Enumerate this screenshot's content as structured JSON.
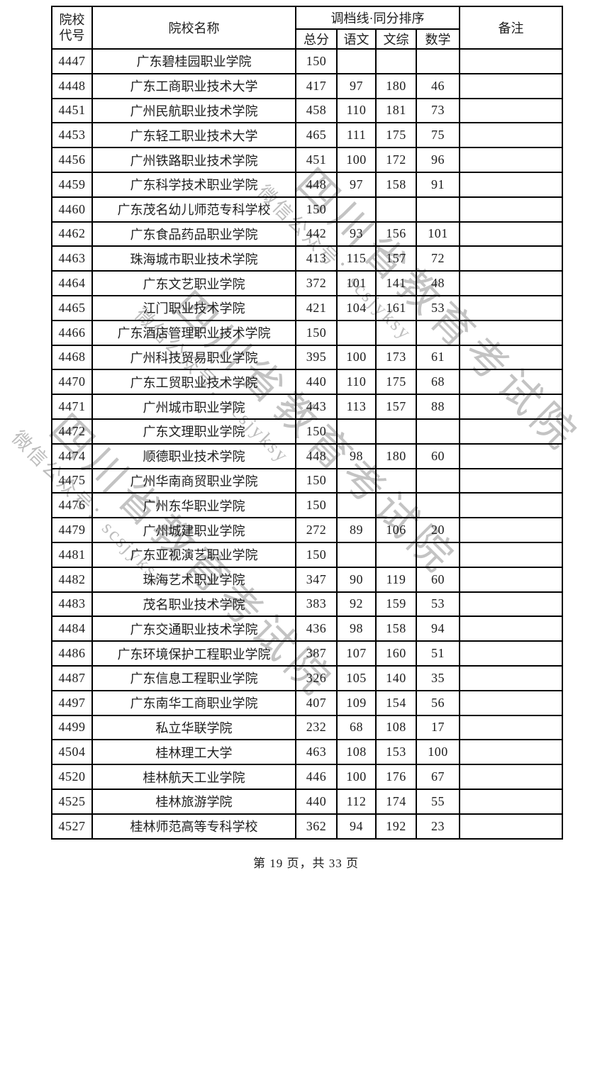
{
  "watermark": {
    "big": "四川省教育考试院",
    "small": "微信公众号：scsjyksy",
    "color_big": "#c3c3c3",
    "color_small": "#bdbdbd"
  },
  "table": {
    "header": {
      "code_line1": "院校",
      "code_line2": "代号",
      "name": "院校名称",
      "group": "调档线·同分排序",
      "sub": [
        "总分",
        "语文",
        "文综",
        "数学"
      ],
      "remark": "备注"
    },
    "rows": [
      [
        "4447",
        "广东碧桂园职业学院",
        "150",
        "",
        "",
        "",
        ""
      ],
      [
        "4448",
        "广东工商职业技术大学",
        "417",
        "97",
        "180",
        "46",
        ""
      ],
      [
        "4451",
        "广州民航职业技术学院",
        "458",
        "110",
        "181",
        "73",
        ""
      ],
      [
        "4453",
        "广东轻工职业技术大学",
        "465",
        "111",
        "175",
        "75",
        ""
      ],
      [
        "4456",
        "广州铁路职业技术学院",
        "451",
        "100",
        "172",
        "96",
        ""
      ],
      [
        "4459",
        "广东科学技术职业学院",
        "448",
        "97",
        "158",
        "91",
        ""
      ],
      [
        "4460",
        "广东茂名幼儿师范专科学校",
        "150",
        "",
        "",
        "",
        ""
      ],
      [
        "4462",
        "广东食品药品职业学院",
        "442",
        "93",
        "156",
        "101",
        ""
      ],
      [
        "4463",
        "珠海城市职业技术学院",
        "413",
        "115",
        "157",
        "72",
        ""
      ],
      [
        "4464",
        "广东文艺职业学院",
        "372",
        "101",
        "141",
        "48",
        ""
      ],
      [
        "4465",
        "江门职业技术学院",
        "421",
        "104",
        "161",
        "53",
        ""
      ],
      [
        "4466",
        "广东酒店管理职业技术学院",
        "150",
        "",
        "",
        "",
        ""
      ],
      [
        "4468",
        "广州科技贸易职业学院",
        "395",
        "100",
        "173",
        "61",
        ""
      ],
      [
        "4470",
        "广东工贸职业技术学院",
        "440",
        "110",
        "175",
        "68",
        ""
      ],
      [
        "4471",
        "广州城市职业学院",
        "443",
        "113",
        "157",
        "88",
        ""
      ],
      [
        "4472",
        "广东文理职业学院",
        "150",
        "",
        "",
        "",
        ""
      ],
      [
        "4474",
        "顺德职业技术学院",
        "448",
        "98",
        "180",
        "60",
        ""
      ],
      [
        "4475",
        "广州华南商贸职业学院",
        "150",
        "",
        "",
        "",
        ""
      ],
      [
        "4476",
        "广州东华职业学院",
        "150",
        "",
        "",
        "",
        ""
      ],
      [
        "4479",
        "广州城建职业学院",
        "272",
        "89",
        "106",
        "20",
        ""
      ],
      [
        "4481",
        "广东亚视演艺职业学院",
        "150",
        "",
        "",
        "",
        ""
      ],
      [
        "4482",
        "珠海艺术职业学院",
        "347",
        "90",
        "119",
        "60",
        ""
      ],
      [
        "4483",
        "茂名职业技术学院",
        "383",
        "92",
        "159",
        "53",
        ""
      ],
      [
        "4484",
        "广东交通职业技术学院",
        "436",
        "98",
        "158",
        "94",
        ""
      ],
      [
        "4486",
        "广东环境保护工程职业学院",
        "387",
        "107",
        "160",
        "51",
        ""
      ],
      [
        "4487",
        "广东信息工程职业学院",
        "326",
        "105",
        "140",
        "35",
        ""
      ],
      [
        "4497",
        "广东南华工商职业学院",
        "407",
        "109",
        "154",
        "56",
        ""
      ],
      [
        "4499",
        "私立华联学院",
        "232",
        "68",
        "108",
        "17",
        ""
      ],
      [
        "4504",
        "桂林理工大学",
        "463",
        "108",
        "153",
        "100",
        ""
      ],
      [
        "4520",
        "桂林航天工业学院",
        "446",
        "100",
        "176",
        "67",
        ""
      ],
      [
        "4525",
        "桂林旅游学院",
        "440",
        "112",
        "174",
        "55",
        ""
      ],
      [
        "4527",
        "桂林师范高等专科学校",
        "362",
        "94",
        "192",
        "23",
        ""
      ]
    ]
  },
  "footer": {
    "text": "第 19 页，共 33 页"
  }
}
